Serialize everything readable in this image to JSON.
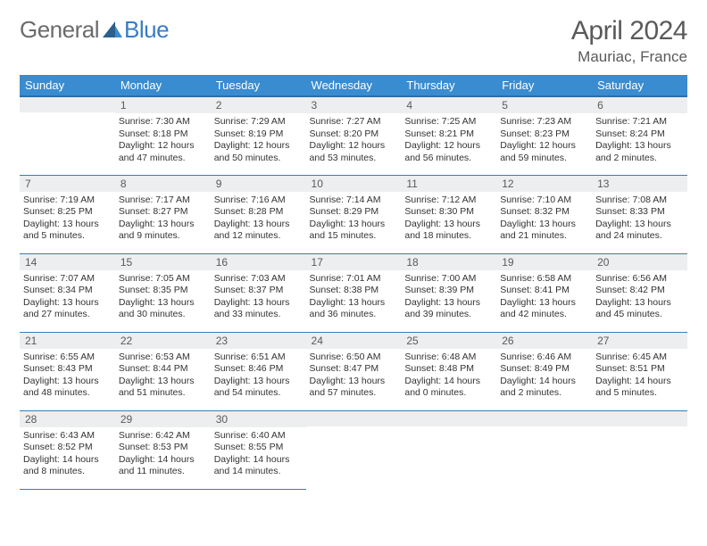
{
  "logo": {
    "part1": "General",
    "part2": "Blue"
  },
  "title": "April 2024",
  "location": "Mauriac, France",
  "colors": {
    "header_bg": "#3a8cd0",
    "header_border": "#2b6fa8",
    "row_border": "#3a7cb8",
    "daynum_bg": "#eceeef",
    "text": "#333333",
    "muted": "#5a5a5a",
    "logo_blue": "#3a7cc4"
  },
  "weekdays": [
    "Sunday",
    "Monday",
    "Tuesday",
    "Wednesday",
    "Thursday",
    "Friday",
    "Saturday"
  ],
  "weeks": [
    [
      null,
      {
        "n": "1",
        "sr": "7:30 AM",
        "ss": "8:18 PM",
        "dl": "12 hours and 47 minutes."
      },
      {
        "n": "2",
        "sr": "7:29 AM",
        "ss": "8:19 PM",
        "dl": "12 hours and 50 minutes."
      },
      {
        "n": "3",
        "sr": "7:27 AM",
        "ss": "8:20 PM",
        "dl": "12 hours and 53 minutes."
      },
      {
        "n": "4",
        "sr": "7:25 AM",
        "ss": "8:21 PM",
        "dl": "12 hours and 56 minutes."
      },
      {
        "n": "5",
        "sr": "7:23 AM",
        "ss": "8:23 PM",
        "dl": "12 hours and 59 minutes."
      },
      {
        "n": "6",
        "sr": "7:21 AM",
        "ss": "8:24 PM",
        "dl": "13 hours and 2 minutes."
      }
    ],
    [
      {
        "n": "7",
        "sr": "7:19 AM",
        "ss": "8:25 PM",
        "dl": "13 hours and 5 minutes."
      },
      {
        "n": "8",
        "sr": "7:17 AM",
        "ss": "8:27 PM",
        "dl": "13 hours and 9 minutes."
      },
      {
        "n": "9",
        "sr": "7:16 AM",
        "ss": "8:28 PM",
        "dl": "13 hours and 12 minutes."
      },
      {
        "n": "10",
        "sr": "7:14 AM",
        "ss": "8:29 PM",
        "dl": "13 hours and 15 minutes."
      },
      {
        "n": "11",
        "sr": "7:12 AM",
        "ss": "8:30 PM",
        "dl": "13 hours and 18 minutes."
      },
      {
        "n": "12",
        "sr": "7:10 AM",
        "ss": "8:32 PM",
        "dl": "13 hours and 21 minutes."
      },
      {
        "n": "13",
        "sr": "7:08 AM",
        "ss": "8:33 PM",
        "dl": "13 hours and 24 minutes."
      }
    ],
    [
      {
        "n": "14",
        "sr": "7:07 AM",
        "ss": "8:34 PM",
        "dl": "13 hours and 27 minutes."
      },
      {
        "n": "15",
        "sr": "7:05 AM",
        "ss": "8:35 PM",
        "dl": "13 hours and 30 minutes."
      },
      {
        "n": "16",
        "sr": "7:03 AM",
        "ss": "8:37 PM",
        "dl": "13 hours and 33 minutes."
      },
      {
        "n": "17",
        "sr": "7:01 AM",
        "ss": "8:38 PM",
        "dl": "13 hours and 36 minutes."
      },
      {
        "n": "18",
        "sr": "7:00 AM",
        "ss": "8:39 PM",
        "dl": "13 hours and 39 minutes."
      },
      {
        "n": "19",
        "sr": "6:58 AM",
        "ss": "8:41 PM",
        "dl": "13 hours and 42 minutes."
      },
      {
        "n": "20",
        "sr": "6:56 AM",
        "ss": "8:42 PM",
        "dl": "13 hours and 45 minutes."
      }
    ],
    [
      {
        "n": "21",
        "sr": "6:55 AM",
        "ss": "8:43 PM",
        "dl": "13 hours and 48 minutes."
      },
      {
        "n": "22",
        "sr": "6:53 AM",
        "ss": "8:44 PM",
        "dl": "13 hours and 51 minutes."
      },
      {
        "n": "23",
        "sr": "6:51 AM",
        "ss": "8:46 PM",
        "dl": "13 hours and 54 minutes."
      },
      {
        "n": "24",
        "sr": "6:50 AM",
        "ss": "8:47 PM",
        "dl": "13 hours and 57 minutes."
      },
      {
        "n": "25",
        "sr": "6:48 AM",
        "ss": "8:48 PM",
        "dl": "14 hours and 0 minutes."
      },
      {
        "n": "26",
        "sr": "6:46 AM",
        "ss": "8:49 PM",
        "dl": "14 hours and 2 minutes."
      },
      {
        "n": "27",
        "sr": "6:45 AM",
        "ss": "8:51 PM",
        "dl": "14 hours and 5 minutes."
      }
    ],
    [
      {
        "n": "28",
        "sr": "6:43 AM",
        "ss": "8:52 PM",
        "dl": "14 hours and 8 minutes."
      },
      {
        "n": "29",
        "sr": "6:42 AM",
        "ss": "8:53 PM",
        "dl": "14 hours and 11 minutes."
      },
      {
        "n": "30",
        "sr": "6:40 AM",
        "ss": "8:55 PM",
        "dl": "14 hours and 14 minutes."
      },
      null,
      null,
      null,
      null
    ]
  ],
  "labels": {
    "sunrise": "Sunrise:",
    "sunset": "Sunset:",
    "daylight": "Daylight:"
  }
}
